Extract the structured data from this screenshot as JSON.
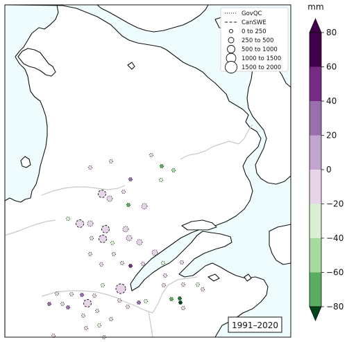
{
  "map": {
    "period_label": "1991–2020",
    "colors": {
      "ocean": "#eefcfd",
      "land": "#ffffff",
      "coast": "#111111",
      "border": "#c8c8c8"
    }
  },
  "legend": {
    "lines": [
      {
        "label": "GovQC",
        "style": "dotted"
      },
      {
        "label": "CanSWE",
        "style": "dashed"
      }
    ],
    "sizes": [
      {
        "label": "0 to 250",
        "radius_rank": 1
      },
      {
        "label": "250 to 500",
        "radius_rank": 2
      },
      {
        "label": "500 to 1000",
        "radius_rank": 3
      },
      {
        "label": "1000 to 1500",
        "radius_rank": 4
      },
      {
        "label": "1500 to 2000",
        "radius_rank": 5
      }
    ]
  },
  "colorbar": {
    "unit": "mm",
    "ticks": [
      "80",
      "60",
      "40",
      "20",
      "0",
      "−20",
      "−40",
      "−60",
      "−80"
    ],
    "tick_values": [
      80,
      60,
      40,
      20,
      0,
      -20,
      -40,
      -60,
      -80
    ],
    "bins": [
      {
        "from": 60,
        "to": 80,
        "color": "#40004b"
      },
      {
        "from": 40,
        "to": 60,
        "color": "#762a83"
      },
      {
        "from": 20,
        "to": 40,
        "color": "#9970ab"
      },
      {
        "from": 0,
        "to": 20,
        "color": "#c2a5cf"
      },
      {
        "from": -20,
        "to": 0,
        "color": "#e7d4e8"
      },
      {
        "from": -40,
        "to": -20,
        "color": "#d9f0d3"
      },
      {
        "from": -60,
        "to": -40,
        "color": "#a6dba0"
      },
      {
        "from": -80,
        "to": -60,
        "color": "#5aae61"
      }
    ],
    "extend_colors": {
      "top": "#40004b",
      "bottom": "#00441b"
    }
  },
  "stations": [
    {
      "source": "GovQC",
      "size_rank": 1,
      "value": 5,
      "color": "#e7d4e8"
    },
    {
      "source": "GovQC",
      "size_rank": 1,
      "value": 5,
      "color": "#e7d4e8"
    },
    {
      "source": "GovQC",
      "size_rank": 1,
      "value": -25,
      "color": "#a6dba0"
    },
    {
      "source": "GovQC",
      "size_rank": 1,
      "value": 5,
      "color": "#e7d4e8"
    },
    {
      "source": "GovQC",
      "size_rank": 1,
      "value": -30,
      "color": "#5aae61"
    },
    {
      "source": "GovQC",
      "size_rank": 1,
      "value": -10,
      "color": "#d9f0d3"
    },
    {
      "source": "GovQC",
      "size_rank": 1,
      "value": 30,
      "color": "#9970ab"
    },
    {
      "source": "GovQC",
      "size_rank": 1,
      "value": 10,
      "color": "#e7d4e8"
    },
    {
      "source": "CanSWE",
      "size_rank": 3,
      "value": 10,
      "color": "#e7d4e8"
    },
    {
      "source": "GovQC",
      "size_rank": 1,
      "value": -30,
      "color": "#5aae61"
    },
    {
      "source": "GovQC",
      "size_rank": 2,
      "value": 5,
      "color": "#e7d4e8"
    },
    {
      "source": "GovQC",
      "size_rank": 1,
      "value": -15,
      "color": "#d9f0d3"
    },
    {
      "source": "CanSWE",
      "size_rank": 3,
      "value": 10,
      "color": "#e7d4e8"
    },
    {
      "source": "GovQC",
      "size_rank": 2,
      "value": 10,
      "color": "#e7d4e8"
    },
    {
      "source": "GovQC",
      "size_rank": 2,
      "value": 10,
      "color": "#e7d4e8"
    },
    {
      "source": "CanSWE",
      "size_rank": 3,
      "value": 10,
      "color": "#e7d4e8"
    },
    {
      "source": "GovQC",
      "size_rank": 2,
      "value": 10,
      "color": "#e7d4e8"
    },
    {
      "source": "GovQC",
      "size_rank": 2,
      "value": 10,
      "color": "#e7d4e8"
    },
    {
      "source": "GovQC",
      "size_rank": 1,
      "value": 5,
      "color": "#e7d4e8"
    },
    {
      "source": "GovQC",
      "size_rank": 1,
      "value": -15,
      "color": "#d9f0d3"
    },
    {
      "source": "CanSWE",
      "size_rank": 3,
      "value": 10,
      "color": "#e7d4e8"
    },
    {
      "source": "GovQC",
      "size_rank": 2,
      "value": 10,
      "color": "#e7d4e8"
    },
    {
      "source": "GovQC",
      "size_rank": 1,
      "value": 5,
      "color": "#e7d4e8"
    },
    {
      "source": "GovQC",
      "size_rank": 1,
      "value": 5,
      "color": "#e7d4e8"
    },
    {
      "source": "GovQC",
      "size_rank": 2,
      "value": 10,
      "color": "#e7d4e8"
    },
    {
      "source": "GovQC",
      "size_rank": 1,
      "value": 5,
      "color": "#e7d4e8"
    },
    {
      "source": "GovQC",
      "size_rank": 1,
      "value": 5,
      "color": "#e7d4e8"
    },
    {
      "source": "GovQC",
      "size_rank": 1,
      "value": 50,
      "color": "#762a83"
    },
    {
      "source": "GovQC",
      "size_rank": 1,
      "value": 5,
      "color": "#e7d4e8"
    },
    {
      "source": "GovQC",
      "size_rank": 1,
      "value": -15,
      "color": "#d9f0d3"
    },
    {
      "source": "GovQC",
      "size_rank": 1,
      "value": 5,
      "color": "#e7d4e8"
    },
    {
      "source": "GovQC",
      "size_rank": 1,
      "value": 5,
      "color": "#e7d4e8"
    },
    {
      "source": "GovQC",
      "size_rank": 1,
      "value": -15,
      "color": "#d9f0d3"
    },
    {
      "source": "GovQC",
      "size_rank": 1,
      "value": 5,
      "color": "#e7d4e8"
    },
    {
      "source": "GovQC",
      "size_rank": 1,
      "value": 5,
      "color": "#e7d4e8"
    },
    {
      "source": "GovQC",
      "size_rank": 1,
      "value": -15,
      "color": "#d9f0d3"
    },
    {
      "source": "CanSWE",
      "size_rank": 4,
      "value": 10,
      "color": "#e7d4e8"
    },
    {
      "source": "GovQC",
      "size_rank": 1,
      "value": 5,
      "color": "#e7d4e8"
    },
    {
      "source": "GovQC",
      "size_rank": 1,
      "value": 5,
      "color": "#e7d4e8"
    },
    {
      "source": "GovQC",
      "size_rank": 1,
      "value": 30,
      "color": "#9970ab"
    },
    {
      "source": "GovQC",
      "size_rank": 1,
      "value": 5,
      "color": "#e7d4e8"
    },
    {
      "source": "GovQC",
      "size_rank": 1,
      "value": 5,
      "color": "#e7d4e8"
    },
    {
      "source": "GovQC",
      "size_rank": 1,
      "value": -30,
      "color": "#5aae61"
    },
    {
      "source": "GovQC",
      "size_rank": 1,
      "value": -15,
      "color": "#d9f0d3"
    },
    {
      "source": "GovQC",
      "size_rank": 1,
      "value": -70,
      "color": "#1b7837"
    },
    {
      "source": "GovQC",
      "size_rank": 1,
      "value": 5,
      "color": "#e7d4e8"
    },
    {
      "source": "GovQC",
      "size_rank": 1,
      "value": 5,
      "color": "#e7d4e8"
    },
    {
      "source": "GovQC",
      "size_rank": 1,
      "value": 30,
      "color": "#9970ab"
    },
    {
      "source": "GovQC",
      "size_rank": 1,
      "value": 5,
      "color": "#e7d4e8"
    },
    {
      "source": "GovQC",
      "size_rank": 1,
      "value": 30,
      "color": "#9970ab"
    },
    {
      "source": "GovQC",
      "size_rank": 1,
      "value": 30,
      "color": "#9970ab"
    },
    {
      "source": "GovQC",
      "size_rank": 1,
      "value": 5,
      "color": "#e7d4e8"
    },
    {
      "source": "GovQC",
      "size_rank": 1,
      "value": 5,
      "color": "#e7d4e8"
    },
    {
      "source": "GovQC",
      "size_rank": 1,
      "value": 5,
      "color": "#e7d4e8"
    },
    {
      "source": "CanSWE",
      "size_rank": 3,
      "value": 10,
      "color": "#e7d4e8"
    },
    {
      "source": "GovQC",
      "size_rank": 1,
      "value": 5,
      "color": "#e7d4e8"
    },
    {
      "source": "GovQC",
      "size_rank": 1,
      "value": -15,
      "color": "#d9f0d3"
    },
    {
      "source": "GovQC",
      "size_rank": 1,
      "value": 5,
      "color": "#e7d4e8"
    },
    {
      "source": "GovQC",
      "size_rank": 1,
      "value": 5,
      "color": "#e7d4e8"
    },
    {
      "source": "GovQC",
      "size_rank": 1,
      "value": 5,
      "color": "#e7d4e8"
    },
    {
      "source": "GovQC",
      "size_rank": 1,
      "value": -80,
      "color": "#00441b"
    }
  ]
}
